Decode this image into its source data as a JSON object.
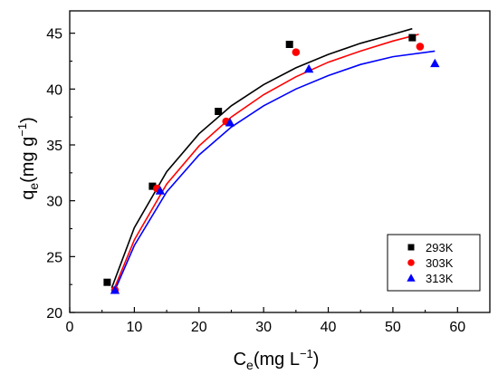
{
  "chart_data": {
    "type": "scatter",
    "xlim": [
      0,
      65
    ],
    "ylim": [
      20,
      47
    ],
    "x_ticks": [
      0,
      10,
      20,
      30,
      40,
      50,
      60
    ],
    "y_ticks": [
      20,
      25,
      30,
      35,
      40,
      45
    ],
    "x_ticks_labels": [
      "0",
      "10",
      "20",
      "30",
      "40",
      "50",
      "60"
    ],
    "y_ticks_labels": [
      "20",
      "25",
      "30",
      "35",
      "40",
      "45"
    ],
    "xlabel": {
      "main": "C",
      "sub": "e",
      "unit": "(mg L",
      "sup": "−1",
      "close": ")"
    },
    "ylabel": {
      "main": "q",
      "sub": "e",
      "unit": "(mg g",
      "sup": "−1",
      "close": ")"
    },
    "grid": false,
    "legend_position": "bottom-right",
    "series": [
      {
        "name": "293K",
        "color": "#000000",
        "marker": "square",
        "points": [
          [
            5.8,
            22.7
          ],
          [
            12.8,
            31.3
          ],
          [
            23.0,
            38.0
          ],
          [
            34.0,
            44.0
          ],
          [
            53.0,
            44.6
          ]
        ],
        "fit": [
          [
            6.5,
            22.2
          ],
          [
            10,
            27.6
          ],
          [
            15,
            32.6
          ],
          [
            20,
            36.0
          ],
          [
            25,
            38.5
          ],
          [
            30,
            40.4
          ],
          [
            35,
            41.9
          ],
          [
            40,
            43.1
          ],
          [
            45,
            44.1
          ],
          [
            50,
            44.9
          ],
          [
            53,
            45.4
          ]
        ]
      },
      {
        "name": "303K",
        "color": "#ff0000",
        "marker": "circle",
        "points": [
          [
            7.0,
            22.0
          ],
          [
            13.5,
            31.1
          ],
          [
            24.2,
            37.1
          ],
          [
            35.0,
            43.3
          ],
          [
            54.2,
            43.8
          ]
        ],
        "fit": [
          [
            6.8,
            22.0
          ],
          [
            10,
            26.5
          ],
          [
            15,
            31.5
          ],
          [
            20,
            34.9
          ],
          [
            25,
            37.5
          ],
          [
            30,
            39.5
          ],
          [
            35,
            41.1
          ],
          [
            40,
            42.4
          ],
          [
            45,
            43.4
          ],
          [
            50,
            44.3
          ],
          [
            54,
            44.9
          ]
        ]
      },
      {
        "name": "313K",
        "color": "#0000ff",
        "marker": "triangle",
        "points": [
          [
            7.0,
            22.0
          ],
          [
            14.0,
            30.9
          ],
          [
            24.8,
            37.0
          ],
          [
            37.0,
            41.8
          ],
          [
            56.5,
            42.3
          ]
        ],
        "fit": [
          [
            7.0,
            22.0
          ],
          [
            10,
            26.0
          ],
          [
            15,
            30.8
          ],
          [
            20,
            34.1
          ],
          [
            25,
            36.6
          ],
          [
            30,
            38.5
          ],
          [
            35,
            40.0
          ],
          [
            40,
            41.2
          ],
          [
            45,
            42.2
          ],
          [
            50,
            42.9
          ],
          [
            56.5,
            43.4
          ]
        ]
      }
    ]
  }
}
